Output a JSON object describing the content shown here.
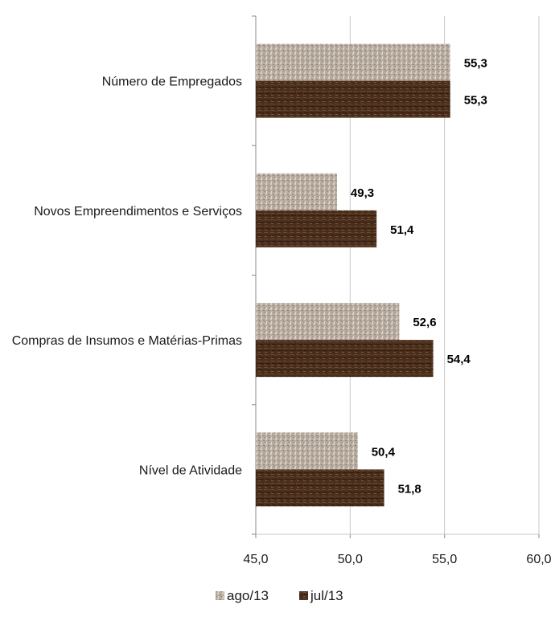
{
  "chart_data": {
    "type": "bar",
    "orientation": "horizontal",
    "categories": [
      "Número de Empregados",
      "Novos Empreendimentos e Serviços",
      "Compras de Insumos e Matérias-Primas",
      "Nível de Atividade"
    ],
    "series": [
      {
        "name": "ago/13",
        "values": [
          55.3,
          49.3,
          52.6,
          50.4
        ],
        "color": "#b8aca0"
      },
      {
        "name": "jul/13",
        "values": [
          55.3,
          51.4,
          54.4,
          51.8
        ],
        "color": "#4a2e1c"
      }
    ],
    "xlim": [
      45.0,
      60.0
    ],
    "x_ticks": [
      "45,0",
      "50,0",
      "55,0",
      "60,0"
    ],
    "x_tick_values": [
      45,
      50,
      55,
      60
    ],
    "data_labels": [
      [
        "55,3",
        "49,3",
        "52,6",
        "50,4"
      ],
      [
        "55,3",
        "51,4",
        "54,4",
        "51,8"
      ]
    ],
    "grid": "vertical",
    "legend_position": "bottom",
    "title": "",
    "xlabel": "",
    "ylabel": ""
  }
}
